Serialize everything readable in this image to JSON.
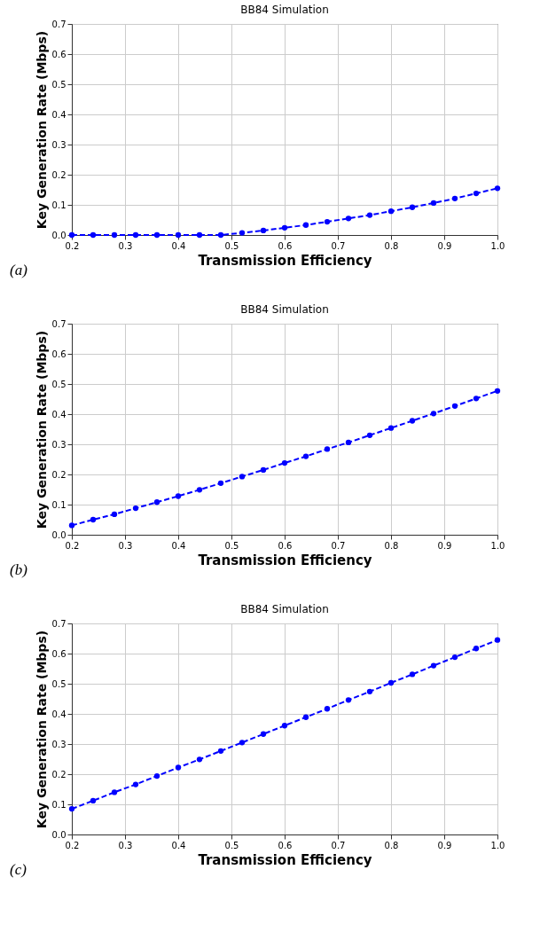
{
  "chart_data": [
    {
      "type": "line",
      "title": "BB84 Simulation",
      "xlabel": "Transmission Efficiency",
      "ylabel": "Key Generation Rate (Mbps)",
      "annotations": [
        "(a)"
      ],
      "x": [
        0.2,
        0.24,
        0.28,
        0.32,
        0.36,
        0.4,
        0.44,
        0.48,
        0.52,
        0.56,
        0.6,
        0.64,
        0.68,
        0.72,
        0.76,
        0.8,
        0.84,
        0.88,
        0.92,
        0.96,
        1.0
      ],
      "series": [
        {
          "color": "#0000ff",
          "values": [
            0,
            0,
            0,
            0,
            0,
            0,
            0,
            0,
            0.007,
            0.015,
            0.024,
            0.033,
            0.044,
            0.055,
            0.066,
            0.079,
            0.092,
            0.106,
            0.121,
            0.138,
            0.155
          ]
        }
      ],
      "xlim": [
        0.2,
        1.0
      ],
      "ylim": [
        0,
        0.7
      ],
      "xticks": [
        {
          "value": 0.2,
          "label": "0.2"
        },
        {
          "value": 0.3,
          "label": "0.3"
        },
        {
          "value": 0.4,
          "label": "0.4"
        },
        {
          "value": 0.5,
          "label": "0.5"
        },
        {
          "value": 0.6,
          "label": "0.6"
        },
        {
          "value": 0.7,
          "label": "0.7"
        },
        {
          "value": 0.8,
          "label": "0.8"
        },
        {
          "value": 0.9,
          "label": "0.9"
        },
        {
          "value": 1.0,
          "label": "1.0"
        }
      ],
      "yticks": [
        {
          "value": 0,
          "label": "0.0"
        },
        {
          "value": 0.1,
          "label": "0.1"
        },
        {
          "value": 0.2,
          "label": "0.2"
        },
        {
          "value": 0.3,
          "label": "0.3"
        },
        {
          "value": 0.4,
          "label": "0.4"
        },
        {
          "value": 0.5,
          "label": "0.5"
        },
        {
          "value": 0.6,
          "label": "0.6"
        },
        {
          "value": 0.7,
          "label": "0.7"
        }
      ],
      "grid": true,
      "marker": "circle",
      "line_style": "dashed"
    },
    {
      "type": "line",
      "title": "BB84 Simulation",
      "xlabel": "Transmission Efficiency",
      "ylabel": "Key Generation Rate (Mbps)",
      "annotations": [
        "(b)"
      ],
      "x": [
        0.2,
        0.24,
        0.28,
        0.32,
        0.36,
        0.4,
        0.44,
        0.48,
        0.52,
        0.56,
        0.6,
        0.64,
        0.68,
        0.72,
        0.76,
        0.8,
        0.84,
        0.88,
        0.92,
        0.96,
        1.0
      ],
      "series": [
        {
          "color": "#0000ff",
          "values": [
            0.031,
            0.05,
            0.068,
            0.088,
            0.108,
            0.128,
            0.149,
            0.171,
            0.193,
            0.215,
            0.238,
            0.26,
            0.284,
            0.306,
            0.33,
            0.354,
            0.378,
            0.402,
            0.427,
            0.452,
            0.477
          ]
        }
      ],
      "xlim": [
        0.2,
        1.0
      ],
      "ylim": [
        0,
        0.7
      ],
      "xticks": [
        {
          "value": 0.2,
          "label": "0.2"
        },
        {
          "value": 0.3,
          "label": "0.3"
        },
        {
          "value": 0.4,
          "label": "0.4"
        },
        {
          "value": 0.5,
          "label": "0.5"
        },
        {
          "value": 0.6,
          "label": "0.6"
        },
        {
          "value": 0.7,
          "label": "0.7"
        },
        {
          "value": 0.8,
          "label": "0.8"
        },
        {
          "value": 0.9,
          "label": "0.9"
        },
        {
          "value": 1.0,
          "label": "1.0"
        }
      ],
      "yticks": [
        {
          "value": 0,
          "label": "0.0"
        },
        {
          "value": 0.1,
          "label": "0.1"
        },
        {
          "value": 0.2,
          "label": "0.2"
        },
        {
          "value": 0.3,
          "label": "0.3"
        },
        {
          "value": 0.4,
          "label": "0.4"
        },
        {
          "value": 0.5,
          "label": "0.5"
        },
        {
          "value": 0.6,
          "label": "0.6"
        },
        {
          "value": 0.7,
          "label": "0.7"
        }
      ],
      "grid": true,
      "marker": "circle",
      "line_style": "dashed"
    },
    {
      "type": "line",
      "title": "BB84 Simulation",
      "xlabel": "Transmission Efficiency",
      "ylabel": "Key Generation Rate (Mbps)",
      "annotations": [
        "(c)"
      ],
      "x": [
        0.2,
        0.24,
        0.28,
        0.32,
        0.36,
        0.4,
        0.44,
        0.48,
        0.52,
        0.56,
        0.6,
        0.64,
        0.68,
        0.72,
        0.76,
        0.8,
        0.84,
        0.88,
        0.92,
        0.96,
        1.0
      ],
      "series": [
        {
          "color": "#0000ff",
          "values": [
            0.085,
            0.112,
            0.14,
            0.166,
            0.194,
            0.222,
            0.249,
            0.277,
            0.305,
            0.333,
            0.361,
            0.389,
            0.417,
            0.446,
            0.474,
            0.503,
            0.531,
            0.56,
            0.588,
            0.617,
            0.645
          ]
        }
      ],
      "xlim": [
        0.2,
        1.0
      ],
      "ylim": [
        0,
        0.7
      ],
      "xticks": [
        {
          "value": 0.2,
          "label": "0.2"
        },
        {
          "value": 0.3,
          "label": "0.3"
        },
        {
          "value": 0.4,
          "label": "0.4"
        },
        {
          "value": 0.5,
          "label": "0.5"
        },
        {
          "value": 0.6,
          "label": "0.6"
        },
        {
          "value": 0.7,
          "label": "0.7"
        },
        {
          "value": 0.8,
          "label": "0.8"
        },
        {
          "value": 0.9,
          "label": "0.9"
        },
        {
          "value": 1.0,
          "label": "1.0"
        }
      ],
      "yticks": [
        {
          "value": 0,
          "label": "0.0"
        },
        {
          "value": 0.1,
          "label": "0.1"
        },
        {
          "value": 0.2,
          "label": "0.2"
        },
        {
          "value": 0.3,
          "label": "0.3"
        },
        {
          "value": 0.4,
          "label": "0.4"
        },
        {
          "value": 0.5,
          "label": "0.5"
        },
        {
          "value": 0.6,
          "label": "0.6"
        },
        {
          "value": 0.7,
          "label": "0.7"
        }
      ],
      "grid": true,
      "marker": "circle",
      "line_style": "dashed"
    }
  ]
}
